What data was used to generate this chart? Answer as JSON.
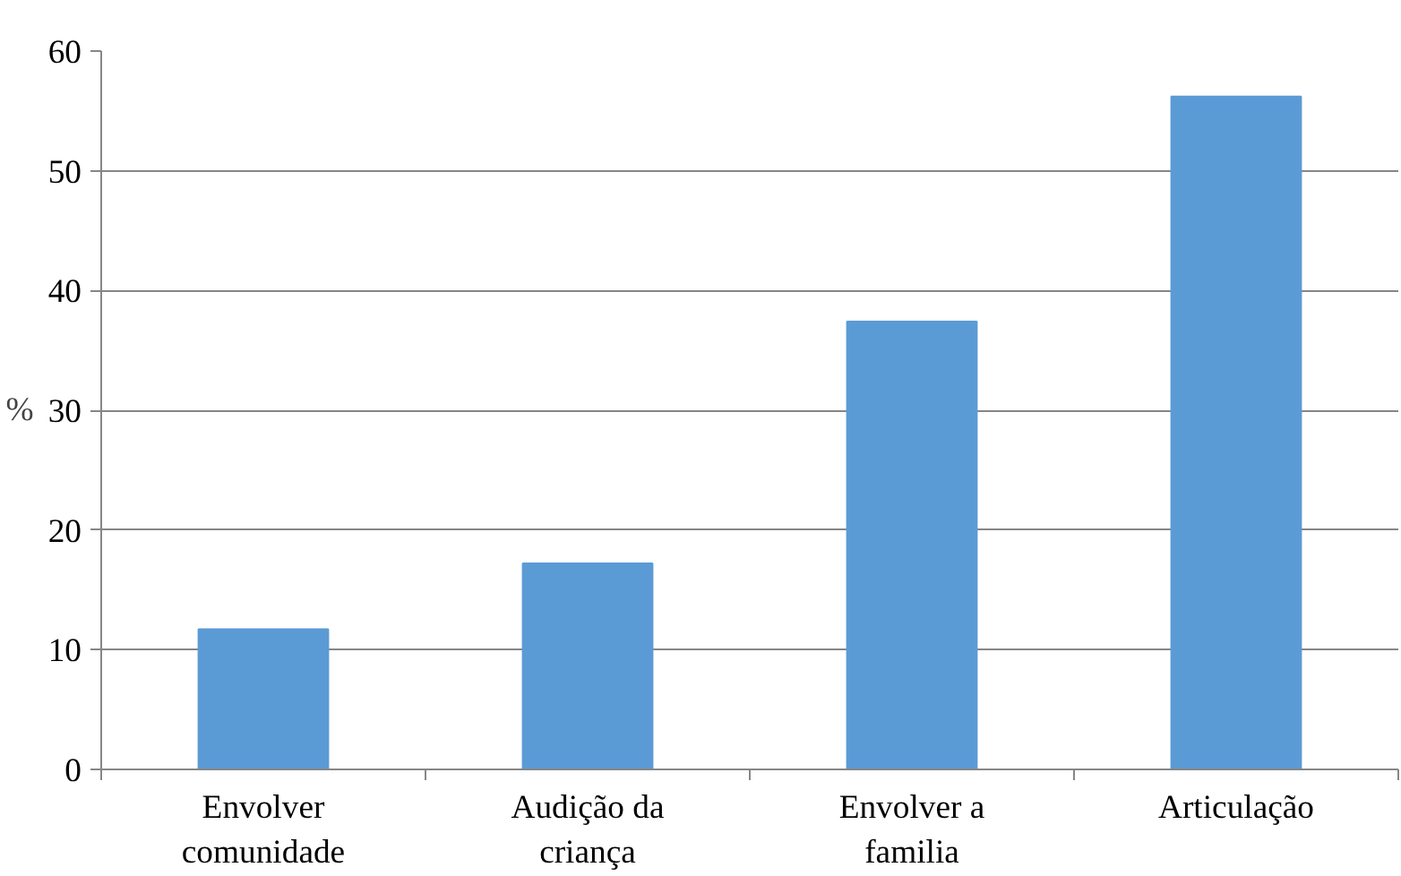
{
  "chart_data": {
    "type": "bar",
    "ylabel": "%",
    "categories": [
      "Envolver\ncomunidade",
      "Audição da\ncriança",
      "Envolver a\nfamilia",
      "Articulação"
    ],
    "values": [
      11.7,
      17.2,
      37.4,
      56.2
    ],
    "color": "#5b9bd5",
    "ylim": [
      0,
      60
    ],
    "yticks": [
      0,
      10,
      20,
      30,
      40,
      50,
      60
    ],
    "grid": "y"
  }
}
